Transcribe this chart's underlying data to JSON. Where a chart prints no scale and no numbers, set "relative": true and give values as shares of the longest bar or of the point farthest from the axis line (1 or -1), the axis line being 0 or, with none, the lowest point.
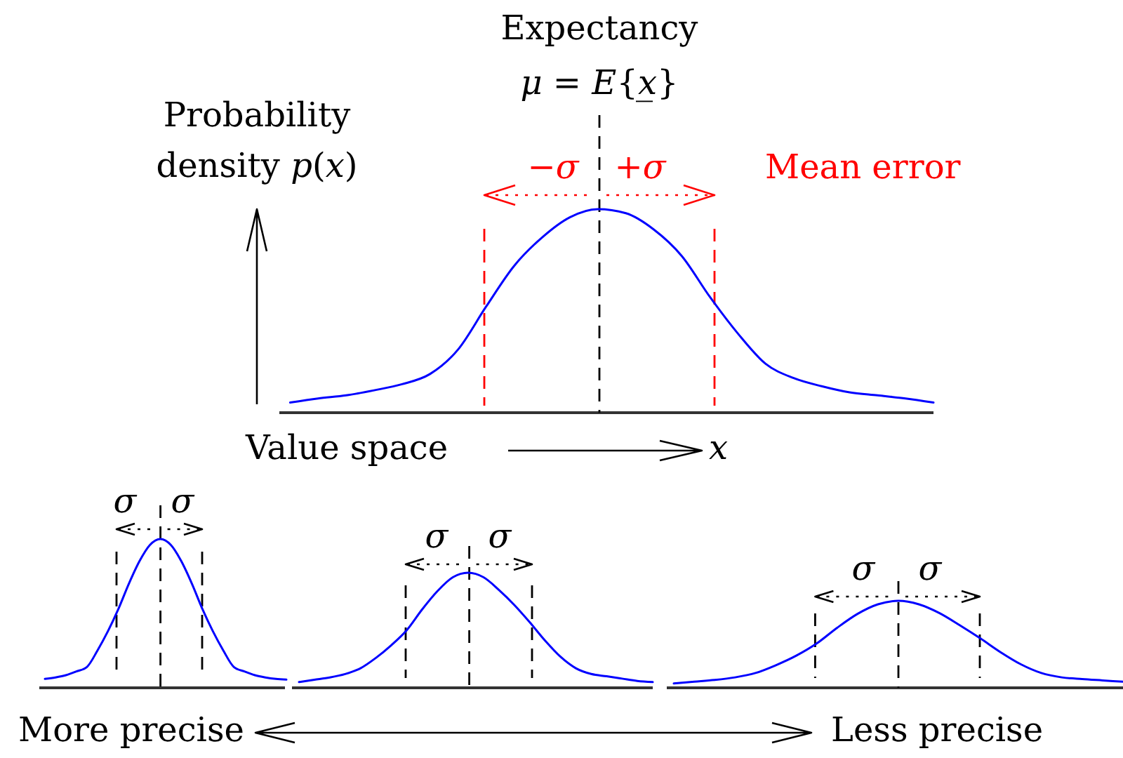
{
  "chart_data": [
    {
      "type": "line",
      "relative": true,
      "xlabel": "Value space",
      "ylabel": "Probability density p(x)",
      "categories": [
        null,
        null,
        null,
        null,
        null,
        null,
        null,
        null,
        null,
        null,
        null,
        null,
        null,
        null,
        null,
        null,
        null,
        null,
        null,
        null,
        null,
        null,
        null,
        null
      ],
      "series": [
        {
          "color": "#0000ff",
          "values": [
            0.05,
            0.07,
            0.085,
            0.11,
            0.14,
            0.19,
            0.31,
            0.52,
            0.72,
            0.86,
            0.96,
            1,
            0.98,
            0.9,
            0.77,
            0.57,
            0.39,
            0.24,
            0.17,
            0.13,
            0.1,
            0.085,
            0.07,
            0.05
          ]
        }
      ],
      "annotations": [
        "Expectancy μ = E{x̲}",
        "−σ",
        "+σ",
        "Mean error",
        "x"
      ]
    },
    {
      "type": "line",
      "relative": true,
      "categories": [
        null,
        null,
        null,
        null,
        null,
        null,
        null,
        null,
        null,
        null,
        null,
        null,
        null,
        null,
        null,
        null,
        null,
        null,
        null,
        null,
        null,
        null,
        null,
        null
      ],
      "series": [
        {
          "color": "#0000ff",
          "values": [
            0.06,
            0.07,
            0.085,
            0.11,
            0.14,
            0.25,
            0.38,
            0.53,
            0.7,
            0.85,
            0.96,
            1,
            0.96,
            0.85,
            0.7,
            0.53,
            0.38,
            0.25,
            0.14,
            0.11,
            0.085,
            0.07,
            0.06,
            0.055
          ]
        }
      ],
      "annotations": [
        "σ",
        "σ"
      ]
    },
    {
      "type": "line",
      "relative": true,
      "categories": [
        null,
        null,
        null,
        null,
        null,
        null,
        null,
        null,
        null,
        null,
        null,
        null,
        null,
        null,
        null,
        null,
        null,
        null,
        null,
        null,
        null,
        null,
        null,
        null
      ],
      "series": [
        {
          "color": "#0000ff",
          "values": [
            0.05,
            0.07,
            0.09,
            0.12,
            0.17,
            0.26,
            0.37,
            0.5,
            0.68,
            0.84,
            0.96,
            1,
            0.96,
            0.85,
            0.72,
            0.57,
            0.41,
            0.27,
            0.17,
            0.12,
            0.1,
            0.08,
            0.06,
            0.05
          ]
        }
      ],
      "annotations": [
        "σ",
        "σ"
      ]
    },
    {
      "type": "line",
      "relative": true,
      "categories": [
        null,
        null,
        null,
        null,
        null,
        null,
        null,
        null,
        null,
        null,
        null,
        null,
        null,
        null,
        null,
        null,
        null,
        null,
        null,
        null,
        null,
        null,
        null
      ],
      "series": [
        {
          "color": "#0000ff",
          "values": [
            0.05,
            0.07,
            0.09,
            0.12,
            0.17,
            0.26,
            0.37,
            0.51,
            0.69,
            0.85,
            0.96,
            1,
            0.96,
            0.86,
            0.72,
            0.57,
            0.41,
            0.27,
            0.17,
            0.12,
            0.1,
            0.085,
            0.07
          ]
        }
      ],
      "annotations": [
        "σ",
        "σ"
      ]
    },
    {
      "type": "other",
      "annotations": [
        "More precise",
        "Less precise"
      ]
    }
  ]
}
